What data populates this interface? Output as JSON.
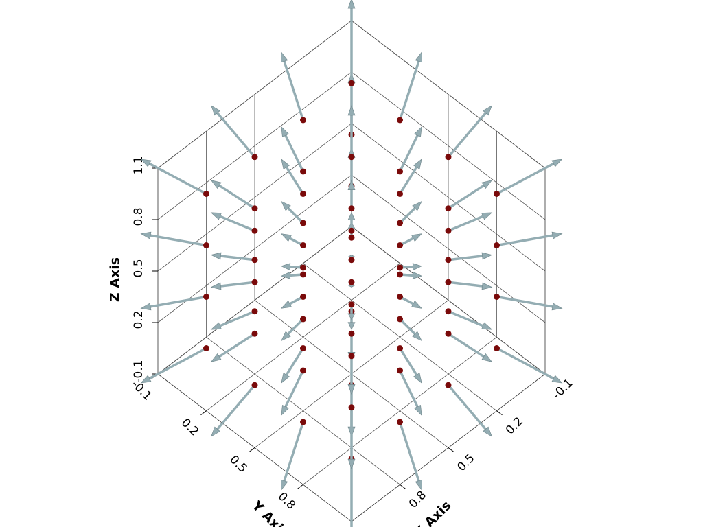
{
  "chart_data": {
    "type": "quiver3d",
    "xlabel": "X Axis",
    "ylabel": "Y Axis",
    "zlabel": "Z Axis",
    "xlim": [
      -0.1,
      1.1
    ],
    "ylim": [
      -0.1,
      1.1
    ],
    "zlim": [
      -0.1,
      1.1
    ],
    "xticks": [
      -0.1,
      0.2,
      0.5,
      0.8
    ],
    "yticks": [
      -0.1,
      0.2,
      0.5,
      0.8
    ],
    "zticks": [
      -0.1,
      0.2,
      0.5,
      0.8,
      1.1
    ],
    "grid": true,
    "point_color": "#7a0a0a",
    "arrow_color": "#94adb3",
    "x": [
      0.05,
      0.05,
      0.05,
      0.05,
      0.05,
      0.05,
      0.05,
      0.05,
      0.05,
      0.05,
      0.05,
      0.05,
      0.05,
      0.05,
      0.05,
      0.05,
      0.35,
      0.35,
      0.35,
      0.35,
      0.35,
      0.35,
      0.35,
      0.35,
      0.35,
      0.35,
      0.35,
      0.35,
      0.35,
      0.35,
      0.35,
      0.35,
      0.65,
      0.65,
      0.65,
      0.65,
      0.65,
      0.65,
      0.65,
      0.65,
      0.65,
      0.65,
      0.65,
      0.65,
      0.65,
      0.65,
      0.65,
      0.65,
      0.95,
      0.95,
      0.95,
      0.95,
      0.95,
      0.95,
      0.95,
      0.95,
      0.95,
      0.95,
      0.95,
      0.95,
      0.95,
      0.95,
      0.95,
      0.95
    ],
    "y": [
      0.05,
      0.05,
      0.05,
      0.05,
      0.35,
      0.35,
      0.35,
      0.35,
      0.65,
      0.65,
      0.65,
      0.65,
      0.95,
      0.95,
      0.95,
      0.95,
      0.05,
      0.05,
      0.05,
      0.05,
      0.35,
      0.35,
      0.35,
      0.35,
      0.65,
      0.65,
      0.65,
      0.65,
      0.95,
      0.95,
      0.95,
      0.95,
      0.05,
      0.05,
      0.05,
      0.05,
      0.35,
      0.35,
      0.35,
      0.35,
      0.65,
      0.65,
      0.65,
      0.65,
      0.95,
      0.95,
      0.95,
      0.95,
      0.05,
      0.05,
      0.05,
      0.05,
      0.35,
      0.35,
      0.35,
      0.35,
      0.65,
      0.65,
      0.65,
      0.65,
      0.95,
      0.95,
      0.95,
      0.95
    ],
    "z": [
      0.05,
      0.35,
      0.65,
      0.95,
      0.05,
      0.35,
      0.65,
      0.95,
      0.05,
      0.35,
      0.65,
      0.95,
      0.05,
      0.35,
      0.65,
      0.95,
      0.05,
      0.35,
      0.65,
      0.95,
      0.05,
      0.35,
      0.65,
      0.95,
      0.05,
      0.35,
      0.65,
      0.95,
      0.05,
      0.35,
      0.65,
      0.95,
      0.05,
      0.35,
      0.65,
      0.95,
      0.05,
      0.35,
      0.65,
      0.95,
      0.05,
      0.35,
      0.65,
      0.95,
      0.05,
      0.35,
      0.65,
      0.95,
      0.05,
      0.35,
      0.65,
      0.95,
      0.05,
      0.35,
      0.65,
      0.95,
      0.05,
      0.35,
      0.65,
      0.95,
      0.05,
      0.35,
      0.65,
      0.95
    ],
    "u": [
      -0.45,
      -0.45,
      -0.45,
      -0.45,
      -0.45,
      -0.45,
      -0.45,
      -0.45,
      -0.45,
      -0.45,
      -0.45,
      -0.45,
      -0.45,
      -0.45,
      -0.45,
      -0.45,
      -0.15,
      -0.15,
      -0.15,
      -0.15,
      -0.15,
      -0.15,
      -0.15,
      -0.15,
      -0.15,
      -0.15,
      -0.15,
      -0.15,
      -0.15,
      -0.15,
      -0.15,
      -0.15,
      0.15,
      0.15,
      0.15,
      0.15,
      0.15,
      0.15,
      0.15,
      0.15,
      0.15,
      0.15,
      0.15,
      0.15,
      0.15,
      0.15,
      0.15,
      0.15,
      0.45,
      0.45,
      0.45,
      0.45,
      0.45,
      0.45,
      0.45,
      0.45,
      0.45,
      0.45,
      0.45,
      0.45,
      0.45,
      0.45,
      0.45,
      0.45
    ],
    "v": [
      -0.45,
      -0.45,
      -0.45,
      -0.45,
      -0.15,
      -0.15,
      -0.15,
      -0.15,
      0.15,
      0.15,
      0.15,
      0.15,
      0.45,
      0.45,
      0.45,
      0.45,
      -0.45,
      -0.45,
      -0.45,
      -0.45,
      -0.15,
      -0.15,
      -0.15,
      -0.15,
      0.15,
      0.15,
      0.15,
      0.15,
      0.45,
      0.45,
      0.45,
      0.45,
      -0.45,
      -0.45,
      -0.45,
      -0.45,
      -0.15,
      -0.15,
      -0.15,
      -0.15,
      0.15,
      0.15,
      0.15,
      0.15,
      0.45,
      0.45,
      0.45,
      0.45,
      -0.45,
      -0.45,
      -0.45,
      -0.45,
      -0.15,
      -0.15,
      -0.15,
      -0.15,
      0.15,
      0.15,
      0.15,
      0.15,
      0.45,
      0.45,
      0.45,
      0.45
    ],
    "w": [
      -0.45,
      -0.15,
      0.15,
      0.45,
      -0.45,
      -0.15,
      0.15,
      0.45,
      -0.45,
      -0.15,
      0.15,
      0.45,
      -0.45,
      -0.15,
      0.15,
      0.45,
      -0.45,
      -0.15,
      0.15,
      0.45,
      -0.45,
      -0.15,
      0.15,
      0.45,
      -0.45,
      -0.15,
      0.15,
      0.45,
      -0.45,
      -0.15,
      0.15,
      0.45,
      -0.45,
      -0.15,
      0.15,
      0.45,
      -0.45,
      -0.15,
      0.15,
      0.45,
      -0.45,
      -0.15,
      0.15,
      0.45,
      -0.45,
      -0.15,
      0.15,
      0.45,
      -0.45,
      -0.15,
      0.15,
      0.45,
      -0.45,
      -0.15,
      0.15,
      0.45,
      -0.45,
      -0.15,
      0.15,
      0.45,
      -0.45,
      -0.15,
      0.15,
      0.45
    ]
  }
}
